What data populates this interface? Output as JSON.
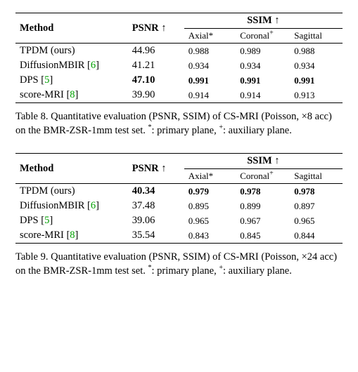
{
  "table8": {
    "caption_prefix": "Table 8.",
    "caption_body": " Quantitative evaluation (PSNR, SSIM) of CS-MRI (Poisson, ×8 acc) on the BMR-ZSR-1mm test set. ",
    "caption_note1": ": primary plane, ",
    "caption_note2": ": auxiliary plane.",
    "header_method": "Method",
    "header_psnr": "PSNR ↑",
    "header_ssim": "SSIM ↑",
    "sub_axial": "Axial*",
    "sub_coronal": "Coronal",
    "sub_coronal_sup": "+",
    "sub_sagittal": "Sagittal",
    "rows": [
      {
        "method": "TPDM (ours)",
        "cite": "",
        "psnr": "44.96",
        "axial": "0.988",
        "coronal": "0.989",
        "sagittal": "0.988",
        "bold": false
      },
      {
        "method": "DiffusionMBIR [",
        "cite": "6",
        "method2": "]",
        "psnr": "41.21",
        "axial": "0.934",
        "coronal": "0.934",
        "sagittal": "0.934",
        "bold": false
      },
      {
        "method": "DPS [",
        "cite": "5",
        "method2": "]",
        "psnr": "47.10",
        "axial": "0.991",
        "coronal": "0.991",
        "sagittal": "0.991",
        "bold": true
      },
      {
        "method": "score-MRI [",
        "cite": "8",
        "method2": "]",
        "psnr": "39.90",
        "axial": "0.914",
        "coronal": "0.914",
        "sagittal": "0.913",
        "bold": false
      }
    ]
  },
  "table9": {
    "caption_prefix": "Table 9.",
    "caption_body": " Quantitative evaluation (PSNR, SSIM) of CS-MRI (Poisson, ×24 acc) on the BMR-ZSR-1mm test set. ",
    "caption_note1": ": primary plane, ",
    "caption_note2": ": auxiliary plane.",
    "header_method": "Method",
    "header_psnr": "PSNR ↑",
    "header_ssim": "SSIM ↑",
    "sub_axial": "Axial*",
    "sub_coronal": "Coronal",
    "sub_coronal_sup": "+",
    "sub_sagittal": "Sagittal",
    "rows": [
      {
        "method": "TPDM (ours)",
        "cite": "",
        "psnr": "40.34",
        "axial": "0.979",
        "coronal": "0.978",
        "sagittal": "0.978",
        "bold": true
      },
      {
        "method": "DiffusionMBIR [",
        "cite": "6",
        "method2": "]",
        "psnr": "37.48",
        "axial": "0.895",
        "coronal": "0.899",
        "sagittal": "0.897",
        "bold": false
      },
      {
        "method": "DPS [",
        "cite": "5",
        "method2": "]",
        "psnr": "39.06",
        "axial": "0.965",
        "coronal": "0.967",
        "sagittal": "0.965",
        "bold": false
      },
      {
        "method": "score-MRI [",
        "cite": "8",
        "method2": "]",
        "psnr": "35.54",
        "axial": "0.843",
        "coronal": "0.845",
        "sagittal": "0.844",
        "bold": false
      }
    ]
  }
}
